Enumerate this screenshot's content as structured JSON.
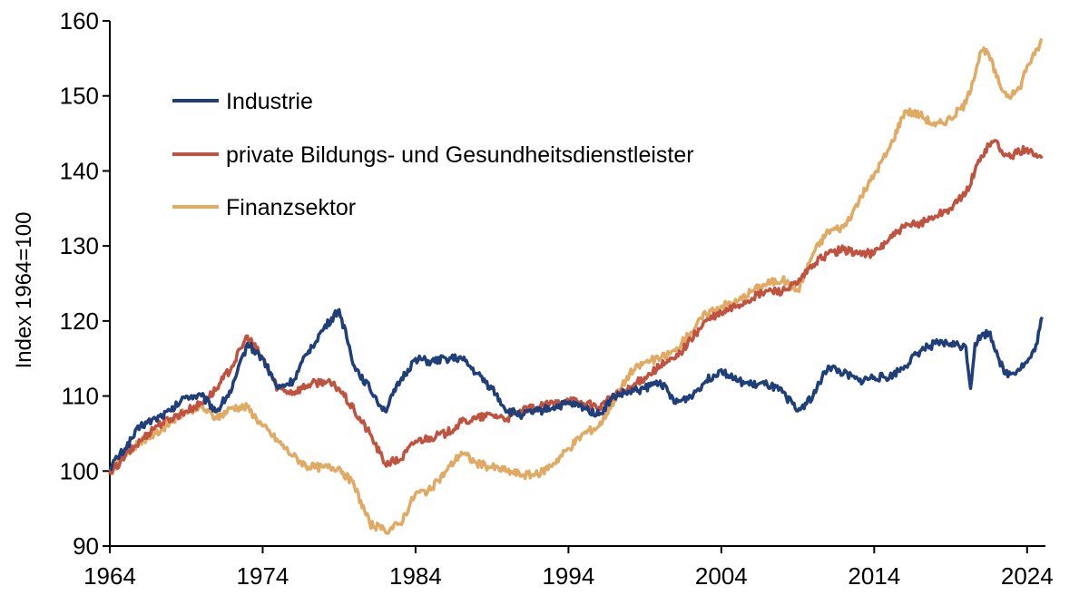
{
  "chart_data": {
    "type": "line",
    "title": "",
    "xlabel": "",
    "ylabel": "Index 1964=100",
    "xlim": [
      1964,
      2025.2
    ],
    "ylim": [
      90,
      160
    ],
    "x_ticks": [
      1964,
      1974,
      1984,
      1994,
      2004,
      2014,
      2024
    ],
    "y_ticks": [
      90,
      100,
      110,
      120,
      130,
      140,
      150,
      160
    ],
    "grid": false,
    "legend_position": "top-left",
    "series": [
      {
        "name": "Industrie",
        "color": "#1f3f7a",
        "points": [
          [
            1964,
            100.5
          ],
          [
            1965,
            103
          ],
          [
            1966,
            106
          ],
          [
            1967,
            107
          ],
          [
            1968,
            108
          ],
          [
            1969,
            110
          ],
          [
            1970,
            110
          ],
          [
            1971,
            108
          ],
          [
            1972,
            111
          ],
          [
            1973,
            117
          ],
          [
            1974,
            115
          ],
          [
            1975,
            111
          ],
          [
            1976,
            112
          ],
          [
            1977,
            116
          ],
          [
            1978,
            119
          ],
          [
            1979,
            121.5
          ],
          [
            1980,
            114
          ],
          [
            1981,
            111
          ],
          [
            1982,
            108
          ],
          [
            1983,
            112
          ],
          [
            1984,
            115
          ],
          [
            1985,
            114.5
          ],
          [
            1986,
            115
          ],
          [
            1987,
            115
          ],
          [
            1988,
            113
          ],
          [
            1989,
            111
          ],
          [
            1990,
            108
          ],
          [
            1991,
            107.5
          ],
          [
            1992,
            108
          ],
          [
            1993,
            108.5
          ],
          [
            1994,
            109
          ],
          [
            1995,
            108.5
          ],
          [
            1996,
            107.5
          ],
          [
            1997,
            110
          ],
          [
            1998,
            110.5
          ],
          [
            1999,
            111
          ],
          [
            2000,
            112
          ],
          [
            2001,
            109
          ],
          [
            2002,
            110
          ],
          [
            2003,
            112
          ],
          [
            2004,
            113.5
          ],
          [
            2005,
            112
          ],
          [
            2006,
            111.5
          ],
          [
            2007,
            111.5
          ],
          [
            2008,
            110.5
          ],
          [
            2009,
            108
          ],
          [
            2010,
            110
          ],
          [
            2011,
            114
          ],
          [
            2012,
            113
          ],
          [
            2013,
            112
          ],
          [
            2014,
            112.5
          ],
          [
            2015,
            112.5
          ],
          [
            2016,
            114
          ],
          [
            2017,
            116
          ],
          [
            2018,
            117
          ],
          [
            2019,
            117
          ],
          [
            2020,
            116.5
          ],
          [
            2020.3,
            111
          ],
          [
            2020.6,
            117
          ],
          [
            2021,
            118
          ],
          [
            2021.5,
            118.5
          ],
          [
            2022,
            116
          ],
          [
            2022.5,
            113
          ],
          [
            2023,
            113
          ],
          [
            2024,
            114.5
          ],
          [
            2024.5,
            116
          ],
          [
            2025,
            120.5
          ]
        ]
      },
      {
        "name": "private Bildungs- und Gesundheitsdienstleister",
        "color": "#c0533f",
        "points": [
          [
            1964,
            99.5
          ],
          [
            1965,
            102
          ],
          [
            1966,
            104
          ],
          [
            1967,
            106
          ],
          [
            1968,
            107
          ],
          [
            1969,
            108
          ],
          [
            1970,
            109
          ],
          [
            1971,
            111
          ],
          [
            1972,
            114
          ],
          [
            1973,
            118
          ],
          [
            1974,
            115
          ],
          [
            1975,
            111
          ],
          [
            1976,
            110.5
          ],
          [
            1977,
            111.5
          ],
          [
            1978,
            112
          ],
          [
            1979,
            111
          ],
          [
            1980,
            108
          ],
          [
            1981,
            105
          ],
          [
            1982,
            101
          ],
          [
            1983,
            101.5
          ],
          [
            1984,
            104
          ],
          [
            1985,
            104.5
          ],
          [
            1986,
            105
          ],
          [
            1987,
            106.5
          ],
          [
            1988,
            107
          ],
          [
            1989,
            107.5
          ],
          [
            1990,
            107
          ],
          [
            1991,
            108
          ],
          [
            1992,
            108.5
          ],
          [
            1993,
            109
          ],
          [
            1994,
            109.5
          ],
          [
            1995,
            109
          ],
          [
            1996,
            108.5
          ],
          [
            1997,
            110
          ],
          [
            1998,
            111
          ],
          [
            1999,
            112.5
          ],
          [
            2000,
            114
          ],
          [
            2001,
            115
          ],
          [
            2002,
            117.5
          ],
          [
            2003,
            120
          ],
          [
            2004,
            121
          ],
          [
            2005,
            122
          ],
          [
            2006,
            123
          ],
          [
            2007,
            124
          ],
          [
            2008,
            124
          ],
          [
            2009,
            125
          ],
          [
            2010,
            127.5
          ],
          [
            2011,
            129
          ],
          [
            2012,
            129.5
          ],
          [
            2013,
            129
          ],
          [
            2014,
            129
          ],
          [
            2015,
            131
          ],
          [
            2016,
            132.5
          ],
          [
            2017,
            133
          ],
          [
            2018,
            134
          ],
          [
            2019,
            135
          ],
          [
            2020,
            137
          ],
          [
            2021,
            142
          ],
          [
            2021.5,
            143.5
          ],
          [
            2022,
            144
          ],
          [
            2022.5,
            142
          ],
          [
            2023,
            142
          ],
          [
            2023.5,
            142.5
          ],
          [
            2024,
            143
          ],
          [
            2024.5,
            142
          ],
          [
            2025,
            142
          ]
        ]
      },
      {
        "name": "Finanzsektor",
        "color": "#e0aa63",
        "points": [
          [
            1964,
            100
          ],
          [
            1965,
            102
          ],
          [
            1966,
            104
          ],
          [
            1967,
            105
          ],
          [
            1968,
            106.5
          ],
          [
            1969,
            108
          ],
          [
            1970,
            108.5
          ],
          [
            1971,
            107
          ],
          [
            1972,
            108.5
          ],
          [
            1973,
            108.5
          ],
          [
            1974,
            106
          ],
          [
            1975,
            104
          ],
          [
            1976,
            102
          ],
          [
            1977,
            100.5
          ],
          [
            1978,
            100.5
          ],
          [
            1979,
            100.5
          ],
          [
            1980,
            98
          ],
          [
            1981,
            93
          ],
          [
            1982,
            92
          ],
          [
            1983,
            93
          ],
          [
            1984,
            97
          ],
          [
            1985,
            97.5
          ],
          [
            1986,
            100
          ],
          [
            1987,
            102.5
          ],
          [
            1988,
            101
          ],
          [
            1989,
            100.5
          ],
          [
            1990,
            100
          ],
          [
            1991,
            99.5
          ],
          [
            1992,
            99.5
          ],
          [
            1993,
            101
          ],
          [
            1994,
            103
          ],
          [
            1995,
            105
          ],
          [
            1996,
            106
          ],
          [
            1997,
            109.5
          ],
          [
            1998,
            113
          ],
          [
            1999,
            114.5
          ],
          [
            2000,
            115
          ],
          [
            2001,
            116
          ],
          [
            2002,
            118.5
          ],
          [
            2003,
            121
          ],
          [
            2004,
            122
          ],
          [
            2005,
            122.5
          ],
          [
            2006,
            124
          ],
          [
            2007,
            125
          ],
          [
            2008,
            125.5
          ],
          [
            2009,
            124
          ],
          [
            2010,
            129
          ],
          [
            2011,
            132
          ],
          [
            2012,
            132.5
          ],
          [
            2013,
            136
          ],
          [
            2014,
            139.5
          ],
          [
            2015,
            143
          ],
          [
            2016,
            148
          ],
          [
            2017,
            147.5
          ],
          [
            2018,
            146
          ],
          [
            2019,
            147
          ],
          [
            2020,
            149
          ],
          [
            2021,
            156
          ],
          [
            2021.5,
            155.5
          ],
          [
            2022,
            152.5
          ],
          [
            2022.5,
            150.5
          ],
          [
            2023,
            150
          ],
          [
            2023.5,
            151
          ],
          [
            2024,
            154
          ],
          [
            2024.5,
            155.5
          ],
          [
            2025,
            157.5
          ]
        ]
      }
    ]
  }
}
